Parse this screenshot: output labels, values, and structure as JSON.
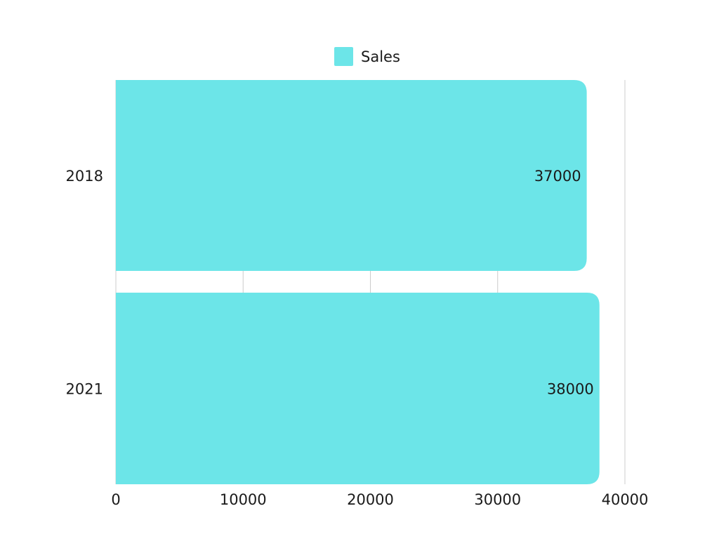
{
  "chart_data": {
    "type": "bar",
    "orientation": "horizontal",
    "categories": [
      "2018",
      "2021"
    ],
    "series": [
      {
        "name": "Sales",
        "values": [
          37000,
          38000
        ],
        "color": "#6ce5e8"
      }
    ],
    "xlim": [
      0,
      40000
    ],
    "xticks": [
      0,
      10000,
      20000,
      30000,
      40000
    ],
    "xtick_labels": [
      "0",
      "10000",
      "20000",
      "30000",
      "40000"
    ],
    "value_labels": [
      "37000",
      "38000"
    ],
    "legend_position": "top-center",
    "grid": true,
    "title": "",
    "xlabel": "",
    "ylabel": ""
  },
  "legend": {
    "label": "Sales"
  }
}
